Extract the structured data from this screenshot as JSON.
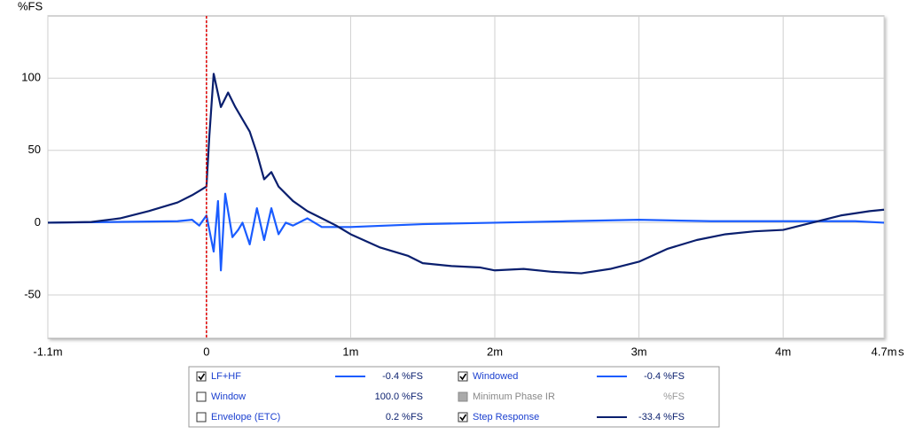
{
  "chart_data": {
    "type": "line",
    "y_label": "%FS",
    "x_unit": "s",
    "xlim": [
      -1.1,
      4.7
    ],
    "ylim": [
      -80,
      143
    ],
    "xticks": [
      {
        "value": -1.1,
        "label": "-1.1m"
      },
      0,
      {
        "value": 1,
        "label": "1m"
      },
      {
        "value": 2,
        "label": "2m"
      },
      {
        "value": 3,
        "label": "3m"
      },
      {
        "value": 4,
        "label": "4m"
      },
      {
        "value": 4.7,
        "label": "4.7m"
      }
    ],
    "yticks": [
      -50,
      0,
      50,
      100
    ],
    "grid": true,
    "marker_x": 0,
    "marker_color": "#e00000",
    "series": [
      {
        "name": "LF+HF",
        "checked": true,
        "enabled": true,
        "color": "#1a5cff",
        "reading": "-0.4 %FS",
        "x": [
          -1.1,
          -0.2,
          -0.1,
          -0.05,
          0,
          0.02,
          0.05,
          0.08,
          0.1,
          0.13,
          0.18,
          0.22,
          0.25,
          0.3,
          0.35,
          0.4,
          0.45,
          0.5,
          0.55,
          0.6,
          0.7,
          0.8,
          1.0,
          1.5,
          2.0,
          2.5,
          3.0,
          3.5,
          4.0,
          4.5,
          4.7
        ],
        "values": [
          0,
          1,
          2,
          -2,
          5,
          -5,
          -20,
          15,
          -33,
          20,
          -10,
          -5,
          0,
          -15,
          10,
          -12,
          10,
          -8,
          0,
          -2,
          3,
          -3,
          -3,
          -1,
          0,
          1,
          2,
          1,
          1,
          1,
          0
        ]
      },
      {
        "name": "Window",
        "checked": false,
        "enabled": true,
        "reading": "100.0 %FS"
      },
      {
        "name": "Envelope (ETC)",
        "checked": false,
        "enabled": true,
        "reading": "0.2 %FS"
      },
      {
        "name": "Windowed",
        "checked": true,
        "enabled": true,
        "color": "#1a5cff",
        "reading": "-0.4 %FS"
      },
      {
        "name": "Minimum Phase IR",
        "checked": false,
        "enabled": false,
        "reading": "%FS"
      },
      {
        "name": "Step Response",
        "checked": true,
        "enabled": true,
        "color": "#0a1f6e",
        "reading": "-33.4 %FS",
        "x": [
          -1.1,
          -0.8,
          -0.6,
          -0.4,
          -0.2,
          -0.1,
          -0.05,
          0,
          0.02,
          0.05,
          0.1,
          0.15,
          0.2,
          0.3,
          0.35,
          0.4,
          0.45,
          0.5,
          0.6,
          0.7,
          0.8,
          0.9,
          1.0,
          1.2,
          1.4,
          1.5,
          1.7,
          1.9,
          2.0,
          2.2,
          2.4,
          2.6,
          2.8,
          3.0,
          3.2,
          3.4,
          3.6,
          3.8,
          4.0,
          4.2,
          4.4,
          4.6,
          4.7
        ],
        "values": [
          0,
          0.5,
          3,
          8,
          14,
          19,
          22,
          25,
          60,
          103,
          80,
          90,
          80,
          63,
          48,
          30,
          35,
          25,
          15,
          8,
          3,
          -2,
          -8,
          -17,
          -23,
          -28,
          -30,
          -31,
          -33,
          -32,
          -34,
          -35,
          -32,
          -27,
          -18,
          -12,
          -8,
          -6,
          -5,
          0,
          5,
          8,
          9
        ]
      }
    ]
  }
}
